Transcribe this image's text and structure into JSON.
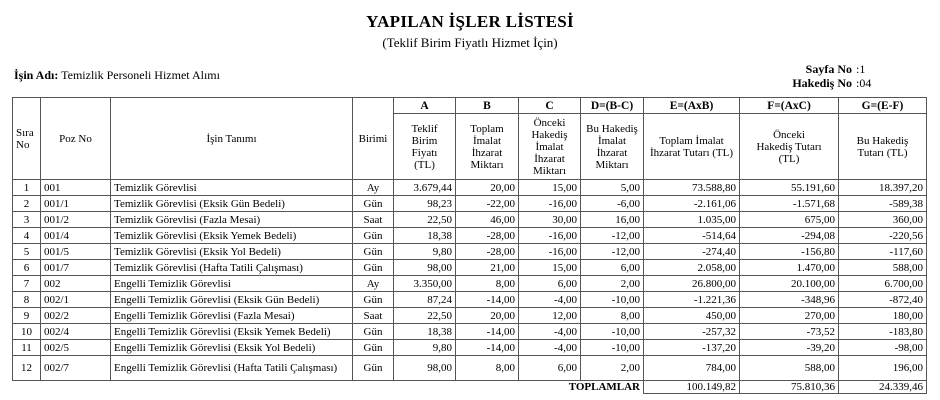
{
  "header": {
    "title": "YAPILAN İŞLER LİSTESİ",
    "subtitle": "(Teklif Birim Fiyatlı Hizmet İçin)",
    "job_label": "İşin Adı:",
    "job_name": "Temizlik Personeli Hizmet Alımı",
    "page_label": "Sayfa No",
    "page_value": ":1",
    "hakedis_label": "Hakediş No",
    "hakedis_value": ":04"
  },
  "table": {
    "col_headers": {
      "sira": "Sıra No",
      "poz": "Poz No",
      "tanim": "İşin Tanımı",
      "birim": "Birimi",
      "a_letter": "A",
      "a": "Teklif Birim Fiyatı (TL)",
      "b_letter": "B",
      "b": "Toplam İmalat İhzarat Miktarı",
      "c_letter": "C",
      "c": "Önceki Hakediş İmalat İhzarat Miktarı",
      "d_letter": "D=(B-C)",
      "d": "Bu Hakediş İmalat İhzarat Miktarı",
      "e_letter": "E=(AxB)",
      "e": "Toplam İmalat İhzarat Tutarı (TL)",
      "f_letter": "F=(AxC)",
      "f": "Önceki Hakediş Tutarı (TL)",
      "g_letter": "G=(E-F)",
      "g": "Bu Hakediş Tutarı (TL)"
    },
    "rows": [
      {
        "sira": "1",
        "poz": "001",
        "tanim": "Temizlik Görevlisi",
        "birim": "Ay",
        "a": "3.679,44",
        "b": "20,00",
        "c": "15,00",
        "d": "5,00",
        "e": "73.588,80",
        "f": "55.191,60",
        "g": "18.397,20"
      },
      {
        "sira": "2",
        "poz": "001/1",
        "tanim": "Temizlik Görevlisi (Eksik Gün Bedeli)",
        "birim": "Gün",
        "a": "98,23",
        "b": "-22,00",
        "c": "-16,00",
        "d": "-6,00",
        "e": "-2.161,06",
        "f": "-1.571,68",
        "g": "-589,38"
      },
      {
        "sira": "3",
        "poz": "001/2",
        "tanim": "Temizlik Görevlisi (Fazla Mesai)",
        "birim": "Saat",
        "a": "22,50",
        "b": "46,00",
        "c": "30,00",
        "d": "16,00",
        "e": "1.035,00",
        "f": "675,00",
        "g": "360,00"
      },
      {
        "sira": "4",
        "poz": "001/4",
        "tanim": "Temizlik Görevlisi (Eksik Yemek Bedeli)",
        "birim": "Gün",
        "a": "18,38",
        "b": "-28,00",
        "c": "-16,00",
        "d": "-12,00",
        "e": "-514,64",
        "f": "-294,08",
        "g": "-220,56"
      },
      {
        "sira": "5",
        "poz": "001/5",
        "tanim": "Temizlik Görevlisi (Eksik Yol Bedeli)",
        "birim": "Gün",
        "a": "9,80",
        "b": "-28,00",
        "c": "-16,00",
        "d": "-12,00",
        "e": "-274,40",
        "f": "-156,80",
        "g": "-117,60"
      },
      {
        "sira": "6",
        "poz": "001/7",
        "tanim": "Temizlik Görevlisi (Hafta Tatili Çalışması)",
        "birim": "Gün",
        "a": "98,00",
        "b": "21,00",
        "c": "15,00",
        "d": "6,00",
        "e": "2.058,00",
        "f": "1.470,00",
        "g": "588,00"
      },
      {
        "sira": "7",
        "poz": "002",
        "tanim": "Engelli Temizlik Görevlisi",
        "birim": "Ay",
        "a": "3.350,00",
        "b": "8,00",
        "c": "6,00",
        "d": "2,00",
        "e": "26.800,00",
        "f": "20.100,00",
        "g": "6.700,00"
      },
      {
        "sira": "8",
        "poz": "002/1",
        "tanim": "Engelli Temizlik Görevlisi (Eksik Gün Bedeli)",
        "birim": "Gün",
        "a": "87,24",
        "b": "-14,00",
        "c": "-4,00",
        "d": "-10,00",
        "e": "-1.221,36",
        "f": "-348,96",
        "g": "-872,40"
      },
      {
        "sira": "9",
        "poz": "002/2",
        "tanim": "Engelli Temizlik Görevlisi (Fazla Mesai)",
        "birim": "Saat",
        "a": "22,50",
        "b": "20,00",
        "c": "12,00",
        "d": "8,00",
        "e": "450,00",
        "f": "270,00",
        "g": "180,00"
      },
      {
        "sira": "10",
        "poz": "002/4",
        "tanim": "Engelli Temizlik Görevlisi (Eksik Yemek Bedeli)",
        "birim": "Gün",
        "a": "18,38",
        "b": "-14,00",
        "c": "-4,00",
        "d": "-10,00",
        "e": "-257,32",
        "f": "-73,52",
        "g": "-183,80"
      },
      {
        "sira": "11",
        "poz": "002/5",
        "tanim": "Engelli Temizlik Görevlisi (Eksik Yol Bedeli)",
        "birim": "Gün",
        "a": "9,80",
        "b": "-14,00",
        "c": "-4,00",
        "d": "-10,00",
        "e": "-137,20",
        "f": "-39,20",
        "g": "-98,00"
      },
      {
        "sira": "12",
        "poz": "002/7",
        "tanim": "Engelli Temizlik Görevlisi (Hafta Tatili Çalışması)",
        "birim": "Gün",
        "a": "98,00",
        "b": "8,00",
        "c": "6,00",
        "d": "2,00",
        "e": "784,00",
        "f": "588,00",
        "g": "196,00"
      }
    ],
    "totals": {
      "label": "TOPLAMLAR",
      "e": "100.149,82",
      "f": "75.810,36",
      "g": "24.339,46"
    }
  }
}
